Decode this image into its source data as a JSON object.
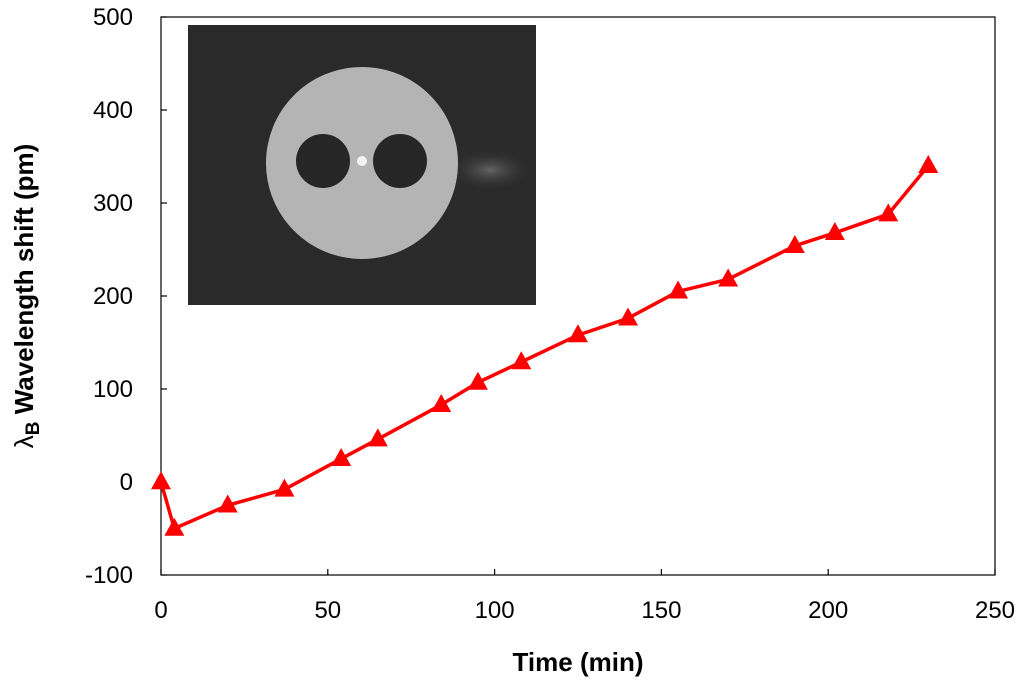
{
  "chart_data": {
    "type": "line",
    "xlabel": "Time (min)",
    "ylabel_symbol": "λ",
    "ylabel_subscript": "B",
    "ylabel_rest": " Wavelength shift (pm)",
    "xlim": [
      0,
      250
    ],
    "ylim": [
      -100,
      500
    ],
    "xticks": [
      0,
      50,
      100,
      150,
      200,
      250
    ],
    "yticks": [
      -100,
      0,
      100,
      200,
      300,
      400,
      500
    ],
    "grid": false,
    "legend": "none",
    "marker": "triangle",
    "series": [
      {
        "color": "#ff0000",
        "x": [
          0,
          4,
          20,
          37,
          54,
          65,
          84,
          95,
          108,
          125,
          140,
          155,
          170,
          190,
          202,
          218,
          230
        ],
        "y": [
          0,
          -50,
          -25,
          -8,
          25,
          46,
          83,
          107,
          129,
          158,
          176,
          205,
          218,
          254,
          268,
          288,
          340
        ]
      }
    ]
  },
  "inset": {
    "description_icon": "fiber-cross-section-image",
    "background": "#2a2a2a",
    "cladding_color": "#b4b4b4",
    "hole_color": "#262626",
    "core_color": "#f4f4f4"
  }
}
